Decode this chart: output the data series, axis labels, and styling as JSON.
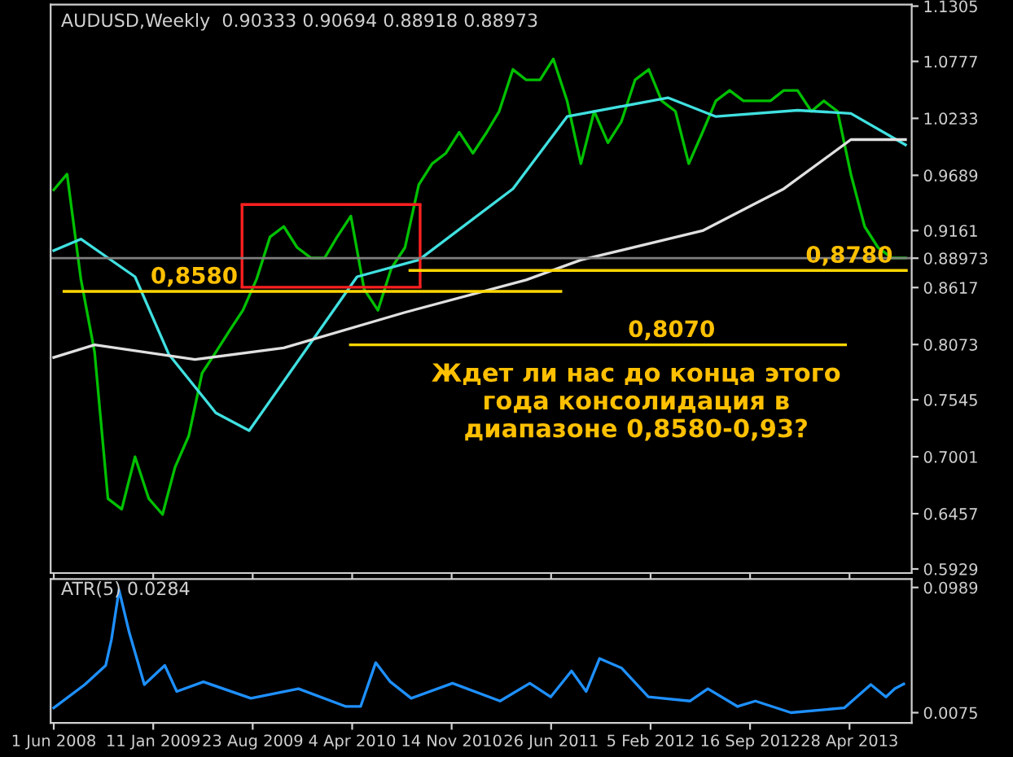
{
  "chart_data": [
    {
      "type": "line",
      "title": "AUDUSD,Weekly  0.90333 0.90694 0.88918 0.88973",
      "xlim": [
        "2008-05-25",
        "2013-09-15"
      ],
      "ylim": [
        0.589,
        1.132
      ],
      "tick_labels": "y",
      "grid": false,
      "legend": false,
      "xticks": [
        {
          "value": "2008-06-01",
          "label": null
        },
        {
          "value": "2009-01-11",
          "label": null
        },
        {
          "value": "2009-08-23",
          "label": null
        },
        {
          "value": "2010-04-04",
          "label": null
        },
        {
          "value": "2010-11-14",
          "label": null
        },
        {
          "value": "2011-06-26",
          "label": null
        },
        {
          "value": "2012-02-05",
          "label": null
        },
        {
          "value": "2012-09-16",
          "label": null
        },
        {
          "value": "2013-04-28",
          "label": null
        }
      ],
      "yticks": [
        1.1305,
        1.0777,
        1.0233,
        0.9689,
        0.9161,
        0.88973,
        0.8617,
        0.8073,
        0.7545,
        0.7001,
        0.6457,
        0.5929
      ],
      "ref_lines": [
        {
          "axis": "y",
          "value": 0.88973,
          "color": "#808080"
        }
      ],
      "series": [
        {
          "color": "#00c000",
          "x": [
            "2008-06-01",
            "2008-07-01",
            "2008-08-01",
            "2008-09-01",
            "2008-10-01",
            "2008-11-01",
            "2008-12-01",
            "2009-01-01",
            "2009-02-01",
            "2009-03-01",
            "2009-04-01",
            "2009-05-01",
            "2009-06-01",
            "2009-07-01",
            "2009-08-01",
            "2009-09-01",
            "2009-10-01",
            "2009-11-01",
            "2009-12-01",
            "2010-01-01",
            "2010-02-01",
            "2010-03-01",
            "2010-04-01",
            "2010-05-01",
            "2010-06-01",
            "2010-07-01",
            "2010-08-01",
            "2010-09-01",
            "2010-10-01",
            "2010-11-01",
            "2010-12-01",
            "2011-01-01",
            "2011-02-01",
            "2011-03-01",
            "2011-04-01",
            "2011-05-01",
            "2011-06-01",
            "2011-07-01",
            "2011-08-01",
            "2011-09-01",
            "2011-10-01",
            "2011-11-01",
            "2011-12-01",
            "2012-01-01",
            "2012-02-01",
            "2012-03-01",
            "2012-04-01",
            "2012-05-01",
            "2012-06-01",
            "2012-07-01",
            "2012-08-01",
            "2012-09-01",
            "2012-10-01",
            "2012-11-01",
            "2012-12-01",
            "2013-01-01",
            "2013-02-01",
            "2013-03-01",
            "2013-04-01",
            "2013-05-01",
            "2013-06-01",
            "2013-07-01",
            "2013-08-01",
            "2013-09-01"
          ],
          "values": [
            0.955,
            0.97,
            0.87,
            0.8,
            0.66,
            0.65,
            0.7,
            0.66,
            0.645,
            0.69,
            0.72,
            0.78,
            0.8,
            0.82,
            0.84,
            0.87,
            0.91,
            0.92,
            0.9,
            0.89,
            0.89,
            0.91,
            0.93,
            0.86,
            0.84,
            0.88,
            0.9,
            0.96,
            0.98,
            0.99,
            1.01,
            0.99,
            1.01,
            1.03,
            1.07,
            1.06,
            1.06,
            1.08,
            1.04,
            0.98,
            1.03,
            1.0,
            1.02,
            1.06,
            1.07,
            1.04,
            1.03,
            0.98,
            1.01,
            1.04,
            1.05,
            1.04,
            1.04,
            1.04,
            1.05,
            1.05,
            1.03,
            1.04,
            1.03,
            0.97,
            0.92,
            0.9,
            0.89,
            0.89
          ]
        },
        {
          "color": "#40e0e0",
          "x": [
            "2008-06-01",
            "2008-08-01",
            "2008-12-01",
            "2009-02-15",
            "2009-06-01",
            "2009-08-15",
            "2010-04-15",
            "2010-09-01",
            "2011-04-01",
            "2011-08-01",
            "2012-03-15",
            "2012-07-01",
            "2013-01-01",
            "2013-05-01",
            "2013-09-01"
          ],
          "values": [
            0.897,
            0.908,
            0.872,
            0.798,
            0.742,
            0.725,
            0.872,
            0.888,
            0.956,
            1.025,
            1.043,
            1.025,
            1.031,
            1.028,
            0.998
          ]
        },
        {
          "color": "#e0e0e0",
          "x": [
            "2008-06-01",
            "2008-09-01",
            "2009-04-15",
            "2009-11-01",
            "2010-08-01",
            "2011-05-01",
            "2011-09-01",
            "2012-06-01",
            "2012-12-01",
            "2013-05-01",
            "2013-09-01"
          ],
          "values": [
            0.795,
            0.807,
            0.793,
            0.804,
            0.838,
            0.869,
            0.888,
            0.916,
            0.956,
            1.003,
            1.003
          ]
        },
        {
          "color": "#ff2020",
          "x": [
            "2009-07-30",
            "2010-09-04"
          ],
          "values": [
            0.941,
            0.941
          ],
          "errors": [
            [
              0.862,
              0.941
            ],
            [
              0.862,
              0.941
            ]
          ]
        },
        {
          "color": "#ff2020",
          "x": [
            "2009-07-30",
            "2010-09-04"
          ],
          "values": [
            0.862,
            0.862
          ]
        },
        {
          "color": "#ffd700",
          "x": [
            "2008-06-24",
            "2011-07-18"
          ],
          "values": [
            0.858,
            0.858
          ]
        },
        {
          "color": "#ffd700",
          "x": [
            "2010-08-12",
            "2013-09-03"
          ],
          "values": [
            0.878,
            0.878
          ]
        },
        {
          "color": "#ffd700",
          "x": [
            "2010-03-31",
            "2013-04-19"
          ],
          "values": [
            0.807,
            0.807
          ]
        }
      ],
      "annotations": [
        {
          "text": "0,8580",
          "x": "2009-01-05",
          "y": 0.858
        },
        {
          "text": "0,8780",
          "x": "2013-01-19",
          "y": 0.878
        },
        {
          "text": "0,8070",
          "x": "2011-12-16",
          "y": 0.807
        },
        "Ждет ли нас до конца этого\nгода консолидация в\nдиапазоне 0,8580-0,93?"
      ]
    },
    {
      "type": "line",
      "title": "ATR(5) 0.0284",
      "xlim": [
        "2008-05-25",
        "2013-09-15"
      ],
      "ylim": [
        0,
        0.105
      ],
      "yticks": [
        0.0989,
        0.0075
      ],
      "grid": false,
      "legend": false,
      "xticks": [
        {
          "value": "2008-06-01",
          "label": "1 Jun 2008"
        },
        {
          "value": "2009-01-11",
          "label": "11 Jan 2009"
        },
        {
          "value": "2009-08-23",
          "label": "23 Aug 2009"
        },
        {
          "value": "2010-04-04",
          "label": "4 Apr 2010"
        },
        {
          "value": "2010-11-14",
          "label": "14 Nov 2010"
        },
        {
          "value": "2011-06-26",
          "label": "26 Jun 2011"
        },
        {
          "value": "2012-02-05",
          "label": "5 Feb 2012"
        },
        {
          "value": "2012-09-16",
          "label": "16 Sep 2012"
        },
        {
          "value": "2013-04-28",
          "label": "28 Apr 2013"
        }
      ],
      "series": [
        {
          "color": "#1e90ff",
          "x": [
            "2008-06-01",
            "2008-08-10",
            "2008-09-26",
            "2008-10-09",
            "2008-10-26",
            "2008-11-18",
            "2008-12-22",
            "2009-02-06",
            "2009-03-05",
            "2009-05-04",
            "2009-08-19",
            "2009-12-04",
            "2010-03-21",
            "2010-04-23",
            "2010-05-27",
            "2010-06-29",
            "2010-08-15",
            "2010-11-16",
            "2011-03-03",
            "2011-05-09",
            "2011-06-25",
            "2011-08-11",
            "2011-09-13",
            "2011-10-13",
            "2011-12-02",
            "2012-01-31",
            "2012-05-04",
            "2012-06-13",
            "2012-08-19",
            "2012-09-28",
            "2012-12-17",
            "2013-04-16",
            "2013-06-15",
            "2013-07-19",
            "2013-08-08",
            "2013-08-28"
          ],
          "values": [
            0.011,
            0.028,
            0.042,
            0.061,
            0.097,
            0.066,
            0.028,
            0.042,
            0.023,
            0.03,
            0.018,
            0.025,
            0.012,
            0.012,
            0.044,
            0.03,
            0.018,
            0.029,
            0.016,
            0.029,
            0.019,
            0.038,
            0.023,
            0.047,
            0.04,
            0.019,
            0.016,
            0.025,
            0.012,
            0.016,
            0.0075,
            0.011,
            0.028,
            0.019,
            0.025,
            0.0284
          ]
        }
      ]
    }
  ]
}
